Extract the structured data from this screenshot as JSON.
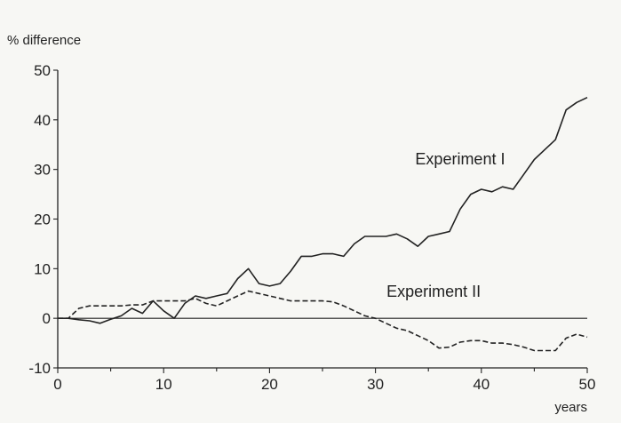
{
  "chart_data": {
    "type": "line",
    "title": "",
    "ylabel": "% difference",
    "xlabel": "years",
    "xlim": [
      0,
      50
    ],
    "ylim": [
      -10,
      50
    ],
    "xticks": [
      0,
      10,
      20,
      30,
      40,
      50
    ],
    "yticks": [
      -10,
      0,
      10,
      20,
      30,
      40,
      50
    ],
    "grid": false,
    "reference_line_y": 0,
    "series": [
      {
        "name": "Experiment I",
        "style": "solid",
        "color": "#222222",
        "x": [
          1,
          2,
          3,
          4,
          5,
          6,
          7,
          8,
          9,
          10,
          11,
          12,
          13,
          14,
          15,
          16,
          17,
          18,
          19,
          20,
          21,
          22,
          23,
          24,
          25,
          26,
          27,
          28,
          29,
          30,
          31,
          32,
          33,
          34,
          35,
          36,
          37,
          38,
          39,
          40,
          41,
          42,
          43,
          44,
          45,
          46,
          47,
          48,
          49,
          50
        ],
        "values": [
          0,
          -0.3,
          -0.5,
          -1,
          -0.2,
          0.5,
          2,
          1,
          3.5,
          1.5,
          0,
          3,
          4.5,
          4,
          4.5,
          5,
          8,
          10,
          7,
          6.5,
          7,
          9.5,
          12.5,
          12.5,
          13,
          13,
          12.5,
          15,
          16.5,
          16.5,
          16.5,
          17,
          16,
          14.5,
          16.5,
          17,
          17.5,
          22,
          25,
          26,
          25.5,
          26.5,
          26,
          29,
          32,
          34,
          36,
          42,
          43.5,
          44.5
        ]
      },
      {
        "name": "Experiment II",
        "style": "dashed",
        "color": "#222222",
        "x": [
          1,
          2,
          3,
          4,
          5,
          6,
          7,
          8,
          9,
          10,
          11,
          12,
          13,
          14,
          15,
          16,
          17,
          18,
          19,
          20,
          21,
          22,
          23,
          24,
          25,
          26,
          27,
          28,
          29,
          30,
          31,
          32,
          33,
          34,
          35,
          36,
          37,
          38,
          39,
          40,
          41,
          42,
          43,
          44,
          45,
          46,
          47,
          48,
          49,
          50
        ],
        "values": [
          0,
          2,
          2.5,
          2.5,
          2.5,
          2.5,
          2.7,
          2.7,
          3.5,
          3.5,
          3.5,
          3.5,
          4,
          3,
          2.5,
          3.5,
          4.5,
          5.5,
          5,
          4.5,
          4,
          3.5,
          3.5,
          3.5,
          3.5,
          3.3,
          2.5,
          1.5,
          0.5,
          0,
          -1,
          -2,
          -2.5,
          -3.5,
          -4.5,
          -6,
          -5.8,
          -4.8,
          -4.5,
          -4.5,
          -5,
          -5,
          -5.3,
          -5.8,
          -6.5,
          -6.5,
          -6.5,
          -4,
          -3.2,
          -3.8
        ]
      }
    ],
    "annotations": [
      {
        "text": "Experiment I",
        "x": 38,
        "y": 31
      },
      {
        "text": "Experiment II",
        "x": 35.5,
        "y": 4.3
      }
    ]
  }
}
